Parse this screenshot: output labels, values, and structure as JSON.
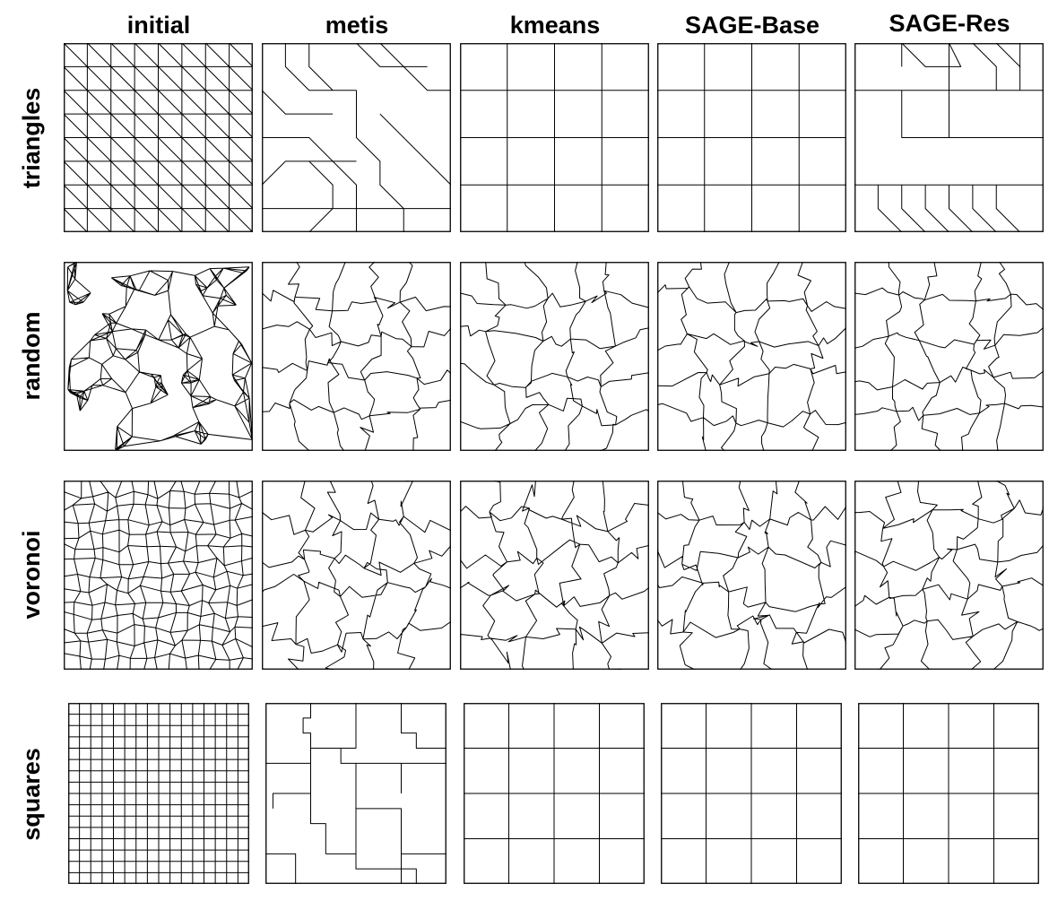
{
  "columns": [
    "initial",
    "metis",
    "kmeans",
    "SAGE-Base",
    "SAGE-Res"
  ],
  "rows": [
    "triangles",
    "random",
    "voronoi",
    "squares"
  ],
  "colors": {
    "line": "#000000",
    "background": "#ffffff"
  }
}
